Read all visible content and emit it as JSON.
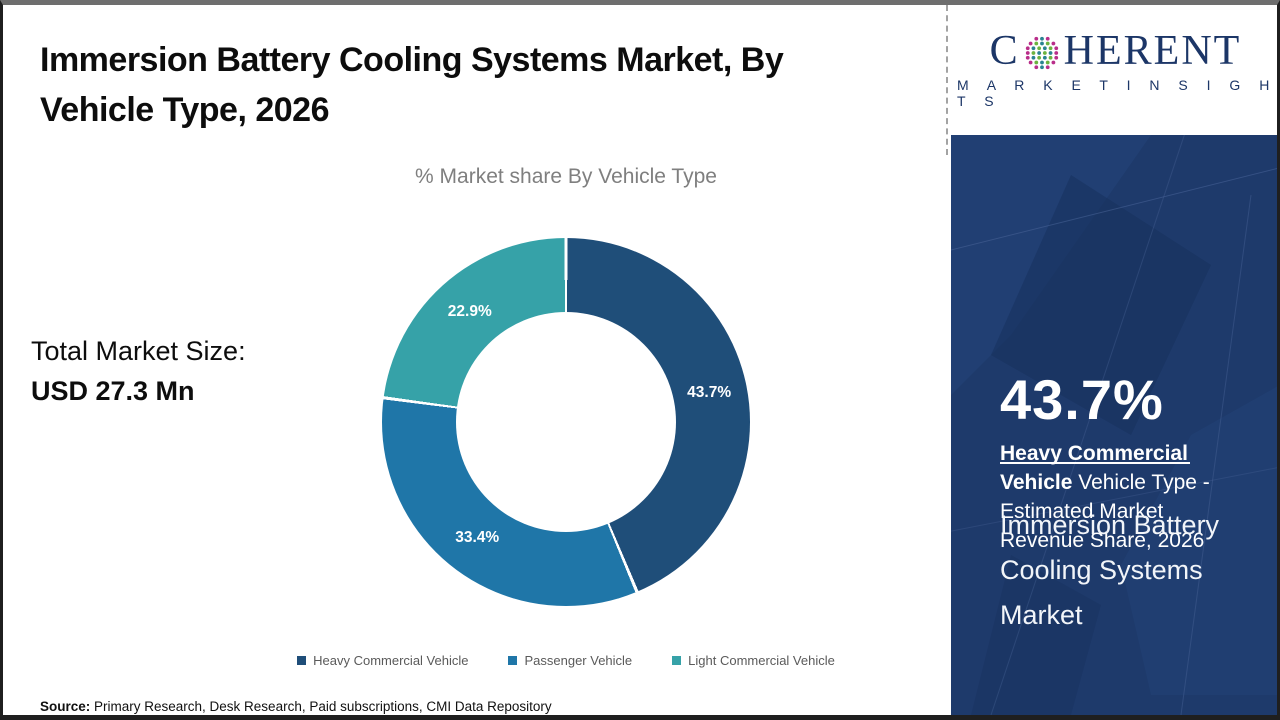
{
  "title_lines": [
    "Immersion Battery Cooling Systems Market, By",
    "Vehicle Type, 2026"
  ],
  "subtitle": "% Market share By Vehicle Type",
  "total_market": {
    "label": "Total Market Size:",
    "value": "USD 27.3 Mn"
  },
  "source": {
    "label": "Source:",
    "text": " Primary Research, Desk Research, Paid subscriptions, CMI Data Repository"
  },
  "logo": {
    "brand_prefix": "C",
    "brand_suffix": "HERENT",
    "tagline": "M A R K E T   I N S I G H T S"
  },
  "sidebar": {
    "stat_value": "43.7%",
    "stat_bold": "Heavy Commercial Vehicle",
    "stat_rest": " Vehicle Type - Estimated Market Revenue Share, 2026",
    "market_name": "Immersion Battery Cooling Systems Market",
    "background_color": "#1e3a6b"
  },
  "chart_data": {
    "type": "pie",
    "donut": true,
    "title": "% Market share By Vehicle Type",
    "start_angle_deg": 0,
    "direction": "clockwise",
    "categories": [
      "Heavy Commercial Vehicle",
      "Passenger Vehicle",
      "Light Commercial Vehicle"
    ],
    "values": [
      43.7,
      33.4,
      22.9
    ],
    "labels": [
      "43.7%",
      "33.4%",
      "22.9%"
    ],
    "colors": [
      "#1f4e79",
      "#1f76a8",
      "#36a2a8"
    ],
    "legend_position": "bottom",
    "total_label": "Total Market Size: USD 27.3 Mn"
  }
}
